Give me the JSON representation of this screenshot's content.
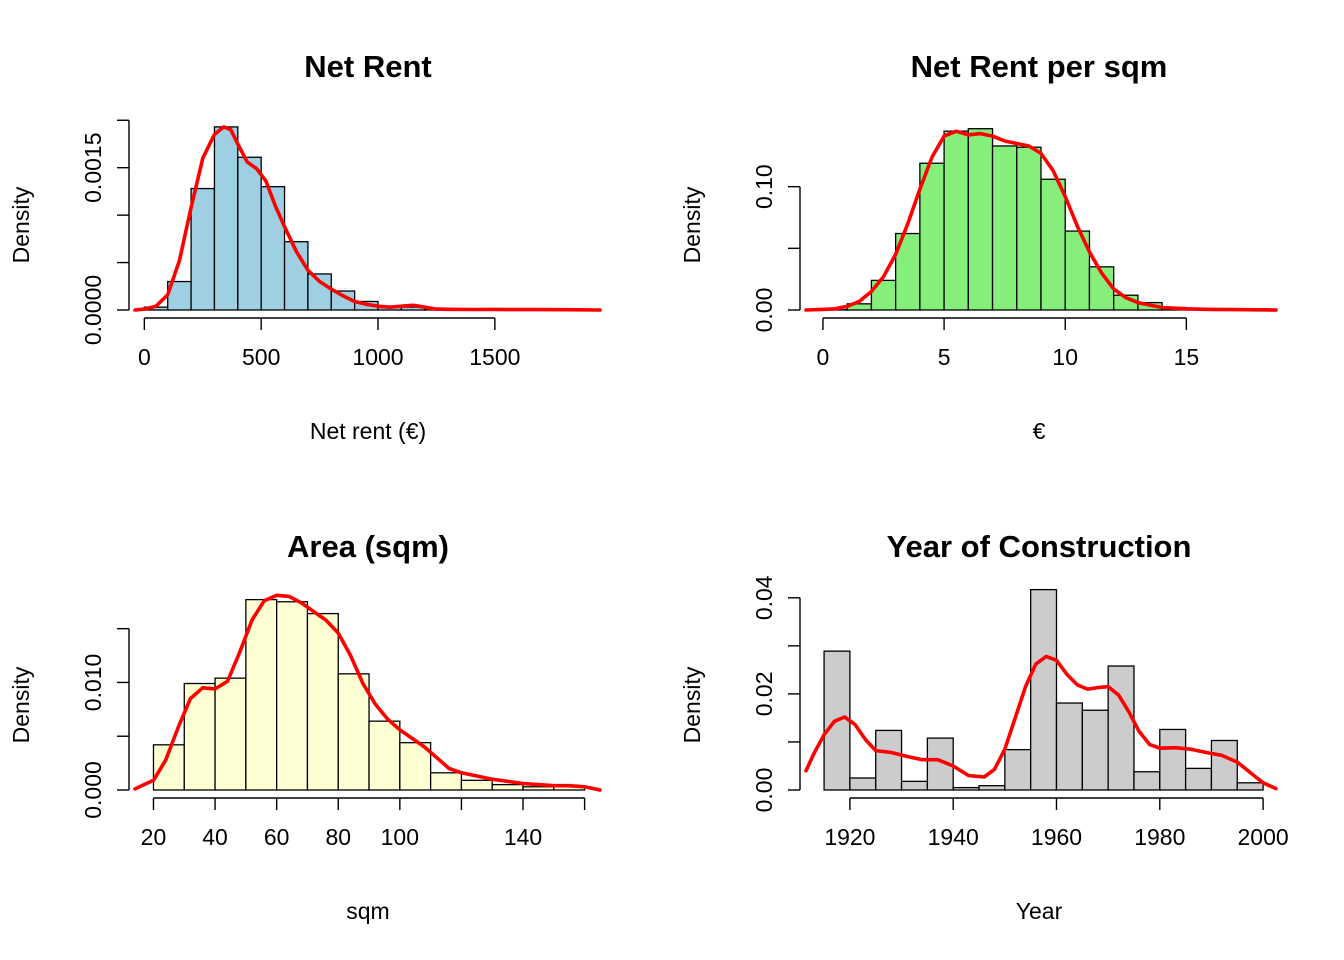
{
  "chart_data": [
    {
      "type": "bar",
      "subtype": "histogram",
      "title": "Net Rent",
      "xlabel": "Net rent (€)",
      "ylabel": "Density",
      "fill": "#9ecfe3",
      "density_color": "#ff0000",
      "xlim": [
        -40,
        1950
      ],
      "ylim": [
        0,
        0.00195
      ],
      "grid": false,
      "x_ticks": [
        0,
        500,
        1000,
        1500
      ],
      "x_tick_labels": [
        "0",
        "500",
        "1000",
        "1500"
      ],
      "y_ticks": [
        0,
        0.0005,
        0.001,
        0.0015,
        0.002
      ],
      "y_tick_labels": [
        "0.0000",
        "",
        "",
        "0.0015",
        ""
      ],
      "bins": [
        {
          "x0": 0,
          "x1": 100,
          "value": 3e-05
        },
        {
          "x0": 100,
          "x1": 200,
          "value": 0.0003
        },
        {
          "x0": 200,
          "x1": 300,
          "value": 0.00128
        },
        {
          "x0": 300,
          "x1": 400,
          "value": 0.00193
        },
        {
          "x0": 400,
          "x1": 500,
          "value": 0.00161
        },
        {
          "x0": 500,
          "x1": 600,
          "value": 0.0013
        },
        {
          "x0": 600,
          "x1": 700,
          "value": 0.00072
        },
        {
          "x0": 700,
          "x1": 800,
          "value": 0.00038
        },
        {
          "x0": 800,
          "x1": 900,
          "value": 0.0002
        },
        {
          "x0": 900,
          "x1": 1000,
          "value": 9e-05
        },
        {
          "x0": 1000,
          "x1": 1100,
          "value": 4e-05
        },
        {
          "x0": 1100,
          "x1": 1200,
          "value": 3e-05
        },
        {
          "x0": 1200,
          "x1": 1300,
          "value": 1e-05
        },
        {
          "x0": 1300,
          "x1": 1400,
          "value": 5e-06
        },
        {
          "x0": 1500,
          "x1": 1600,
          "value": 5e-06
        },
        {
          "x0": 1800,
          "x1": 1900,
          "value": 3e-06
        }
      ],
      "density": {
        "x": [
          -40,
          0,
          50,
          100,
          150,
          200,
          250,
          300,
          340,
          370,
          400,
          440,
          480,
          520,
          560,
          600,
          650,
          700,
          750,
          800,
          850,
          900,
          950,
          1000,
          1050,
          1100,
          1150,
          1200,
          1250,
          1300,
          1400,
          1500,
          1600,
          1700,
          1800,
          1950
        ],
        "y": [
          0.0,
          1e-05,
          4e-05,
          0.00016,
          0.00052,
          0.00108,
          0.0016,
          0.00185,
          0.00193,
          0.0019,
          0.00175,
          0.00156,
          0.00149,
          0.00136,
          0.0011,
          0.00088,
          0.00062,
          0.00042,
          0.0003,
          0.00022,
          0.00015,
          9e-05,
          6e-05,
          4e-05,
          3e-05,
          4e-05,
          5e-05,
          3e-05,
          1e-05,
          7e-06,
          5e-06,
          6e-06,
          4e-06,
          4e-06,
          3e-06,
          0.0
        ]
      }
    },
    {
      "type": "bar",
      "subtype": "histogram",
      "title": "Net Rent per sqm",
      "xlabel": "€",
      "ylabel": "Density",
      "fill": "#86ef7c",
      "density_color": "#ff0000",
      "xlim": [
        -0.7,
        18.7
      ],
      "ylim": [
        0,
        0.15
      ],
      "grid": false,
      "x_ticks": [
        0,
        5,
        10,
        15
      ],
      "x_tick_labels": [
        "0",
        "5",
        "10",
        "15"
      ],
      "y_ticks": [
        0,
        0.05,
        0.1
      ],
      "y_tick_labels": [
        "0.00",
        "",
        "0.10"
      ],
      "bins": [
        {
          "x0": 0,
          "x1": 1,
          "value": 0.0003
        },
        {
          "x0": 1,
          "x1": 2,
          "value": 0.005
        },
        {
          "x0": 2,
          "x1": 3,
          "value": 0.024
        },
        {
          "x0": 3,
          "x1": 4,
          "value": 0.062
        },
        {
          "x0": 4,
          "x1": 5,
          "value": 0.119
        },
        {
          "x0": 5,
          "x1": 6,
          "value": 0.145
        },
        {
          "x0": 6,
          "x1": 7,
          "value": 0.147
        },
        {
          "x0": 7,
          "x1": 8,
          "value": 0.133
        },
        {
          "x0": 8,
          "x1": 9,
          "value": 0.132
        },
        {
          "x0": 9,
          "x1": 10,
          "value": 0.106
        },
        {
          "x0": 10,
          "x1": 11,
          "value": 0.064
        },
        {
          "x0": 11,
          "x1": 12,
          "value": 0.035
        },
        {
          "x0": 12,
          "x1": 13,
          "value": 0.012
        },
        {
          "x0": 13,
          "x1": 14,
          "value": 0.006
        },
        {
          "x0": 14,
          "x1": 15,
          "value": 0.002
        },
        {
          "x0": 15,
          "x1": 16,
          "value": 0.001
        }
      ],
      "density": {
        "x": [
          -0.7,
          0,
          0.5,
          1,
          1.5,
          2,
          2.5,
          3,
          3.5,
          4,
          4.5,
          5,
          5.5,
          6,
          6.5,
          7,
          7.5,
          8,
          8.5,
          9,
          9.5,
          10,
          10.5,
          11,
          11.5,
          12,
          12.5,
          13,
          13.5,
          14,
          15,
          16,
          17,
          18.7
        ],
        "y": [
          0.0,
          0.0005,
          0.001,
          0.003,
          0.007,
          0.015,
          0.027,
          0.045,
          0.07,
          0.098,
          0.124,
          0.141,
          0.145,
          0.142,
          0.143,
          0.141,
          0.137,
          0.135,
          0.133,
          0.127,
          0.113,
          0.092,
          0.068,
          0.047,
          0.03,
          0.017,
          0.01,
          0.006,
          0.004,
          0.002,
          0.001,
          0.0005,
          0.0003,
          0.0
        ]
      }
    },
    {
      "type": "bar",
      "subtype": "histogram",
      "title": "Area (sqm)",
      "xlabel": "sqm",
      "ylabel": "Density",
      "fill": "#ffffd4",
      "density_color": "#ff0000",
      "xlim": [
        14,
        165
      ],
      "ylim": [
        0,
        0.0172
      ],
      "grid": false,
      "x_ticks": [
        20,
        40,
        60,
        80,
        100,
        120,
        140,
        160
      ],
      "x_tick_labels": [
        "20",
        "40",
        "60",
        "80",
        "100",
        "",
        "140",
        ""
      ],
      "y_ticks": [
        0,
        0.005,
        0.01,
        0.015
      ],
      "y_tick_labels": [
        "0.000",
        "",
        "0.010",
        ""
      ],
      "bins": [
        {
          "x0": 20,
          "x1": 30,
          "value": 0.0042
        },
        {
          "x0": 30,
          "x1": 40,
          "value": 0.0099
        },
        {
          "x0": 40,
          "x1": 50,
          "value": 0.0104
        },
        {
          "x0": 50,
          "x1": 60,
          "value": 0.0177
        },
        {
          "x0": 60,
          "x1": 70,
          "value": 0.0175
        },
        {
          "x0": 70,
          "x1": 80,
          "value": 0.0164
        },
        {
          "x0": 80,
          "x1": 90,
          "value": 0.0108
        },
        {
          "x0": 90,
          "x1": 100,
          "value": 0.0064
        },
        {
          "x0": 100,
          "x1": 110,
          "value": 0.0044
        },
        {
          "x0": 110,
          "x1": 120,
          "value": 0.0016
        },
        {
          "x0": 120,
          "x1": 130,
          "value": 0.0009
        },
        {
          "x0": 130,
          "x1": 140,
          "value": 0.0005
        },
        {
          "x0": 140,
          "x1": 150,
          "value": 0.0003
        },
        {
          "x0": 150,
          "x1": 160,
          "value": 0.0003
        }
      ],
      "density": {
        "x": [
          14,
          20,
          24,
          28,
          32,
          36,
          40,
          44,
          48,
          52,
          56,
          60,
          64,
          68,
          72,
          76,
          80,
          84,
          88,
          92,
          96,
          100,
          104,
          108,
          112,
          116,
          120,
          125,
          130,
          135,
          140,
          145,
          150,
          155,
          160,
          165
        ],
        "y": [
          0.0001,
          0.0009,
          0.0028,
          0.0058,
          0.0085,
          0.0095,
          0.0094,
          0.0101,
          0.0128,
          0.0158,
          0.0176,
          0.0181,
          0.018,
          0.0174,
          0.0166,
          0.0158,
          0.0146,
          0.0125,
          0.0099,
          0.008,
          0.0066,
          0.0056,
          0.0048,
          0.004,
          0.003,
          0.002,
          0.0016,
          0.0013,
          0.001,
          0.0008,
          0.0006,
          0.0005,
          0.0004,
          0.0004,
          0.0003,
          0.0
        ]
      }
    },
    {
      "type": "bar",
      "subtype": "histogram",
      "title": "Year of Construction",
      "xlabel": "Year",
      "ylabel": "Density",
      "fill": "#cccccc",
      "density_color": "#ff0000",
      "xlim": [
        1911.5,
        2002.5
      ],
      "ylim": [
        0,
        0.0385
      ],
      "grid": false,
      "x_ticks": [
        1920,
        1940,
        1960,
        1980,
        2000
      ],
      "x_tick_labels": [
        "1920",
        "1940",
        "1960",
        "1980",
        "2000"
      ],
      "y_ticks": [
        0,
        0.01,
        0.02,
        0.03,
        0.04
      ],
      "y_tick_labels": [
        "0.00",
        "",
        "0.02",
        "",
        "0.04"
      ],
      "bins": [
        {
          "x0": 1915,
          "x1": 1920,
          "value": 0.0289
        },
        {
          "x0": 1920,
          "x1": 1925,
          "value": 0.0025
        },
        {
          "x0": 1925,
          "x1": 1930,
          "value": 0.0124
        },
        {
          "x0": 1930,
          "x1": 1935,
          "value": 0.0018
        },
        {
          "x0": 1935,
          "x1": 1940,
          "value": 0.0108
        },
        {
          "x0": 1940,
          "x1": 1945,
          "value": 0.0005
        },
        {
          "x0": 1945,
          "x1": 1950,
          "value": 0.0009
        },
        {
          "x0": 1950,
          "x1": 1955,
          "value": 0.0084
        },
        {
          "x0": 1955,
          "x1": 1960,
          "value": 0.0417
        },
        {
          "x0": 1960,
          "x1": 1965,
          "value": 0.0181
        },
        {
          "x0": 1965,
          "x1": 1970,
          "value": 0.0166
        },
        {
          "x0": 1970,
          "x1": 1975,
          "value": 0.0258
        },
        {
          "x0": 1975,
          "x1": 1980,
          "value": 0.0038
        },
        {
          "x0": 1980,
          "x1": 1985,
          "value": 0.0126
        },
        {
          "x0": 1985,
          "x1": 1990,
          "value": 0.0045
        },
        {
          "x0": 1990,
          "x1": 1995,
          "value": 0.0103
        },
        {
          "x0": 1995,
          "x1": 2000,
          "value": 0.0015
        }
      ],
      "density": {
        "x": [
          1911.5,
          1913,
          1915,
          1917,
          1919,
          1921,
          1923,
          1925,
          1928,
          1931,
          1934,
          1937,
          1940,
          1943,
          1946,
          1948,
          1950,
          1952,
          1954,
          1956,
          1958,
          1960,
          1962,
          1964,
          1966,
          1968,
          1970,
          1972,
          1974,
          1976,
          1978,
          1980,
          1983,
          1986,
          1989,
          1992,
          1995,
          1998,
          2000,
          2002.5
        ],
        "y": [
          0.004,
          0.0075,
          0.0115,
          0.0143,
          0.0152,
          0.0136,
          0.0105,
          0.0082,
          0.0078,
          0.007,
          0.0063,
          0.0063,
          0.005,
          0.003,
          0.0027,
          0.0043,
          0.0085,
          0.015,
          0.0215,
          0.0262,
          0.0278,
          0.027,
          0.0241,
          0.0219,
          0.021,
          0.0213,
          0.0215,
          0.0198,
          0.0163,
          0.0122,
          0.0095,
          0.0087,
          0.0088,
          0.0085,
          0.0078,
          0.0072,
          0.0058,
          0.0032,
          0.0015,
          0.0003
        ]
      }
    }
  ]
}
